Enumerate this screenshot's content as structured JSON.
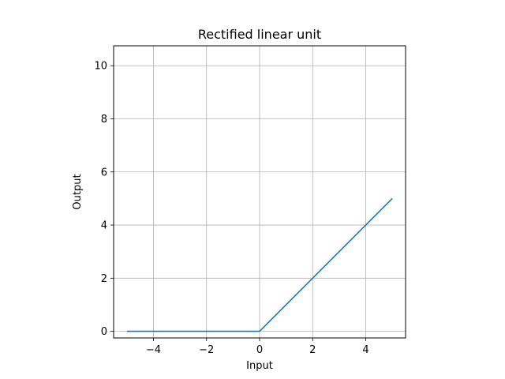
{
  "chart_data": {
    "type": "line",
    "title": "Rectified linear unit",
    "xlabel": "Input",
    "ylabel": "Output",
    "xlim": [
      -5.5,
      5.5
    ],
    "ylim": [
      -0.25,
      10.75
    ],
    "xticks": [
      -4,
      -2,
      0,
      2,
      4
    ],
    "yticks": [
      0,
      2,
      4,
      6,
      8,
      10
    ],
    "xtick_labels": [
      "−4",
      "−2",
      "0",
      "2",
      "4"
    ],
    "ytick_labels": [
      "0",
      "2",
      "4",
      "6",
      "8",
      "10"
    ],
    "grid": true,
    "series": [
      {
        "color": "#1f77b4",
        "x": [
          -5,
          -4,
          -3,
          -2,
          -1,
          0,
          1,
          2,
          3,
          4,
          5
        ],
        "y": [
          0,
          0,
          0,
          0,
          0,
          0,
          1,
          2,
          3,
          4,
          5
        ]
      }
    ]
  }
}
